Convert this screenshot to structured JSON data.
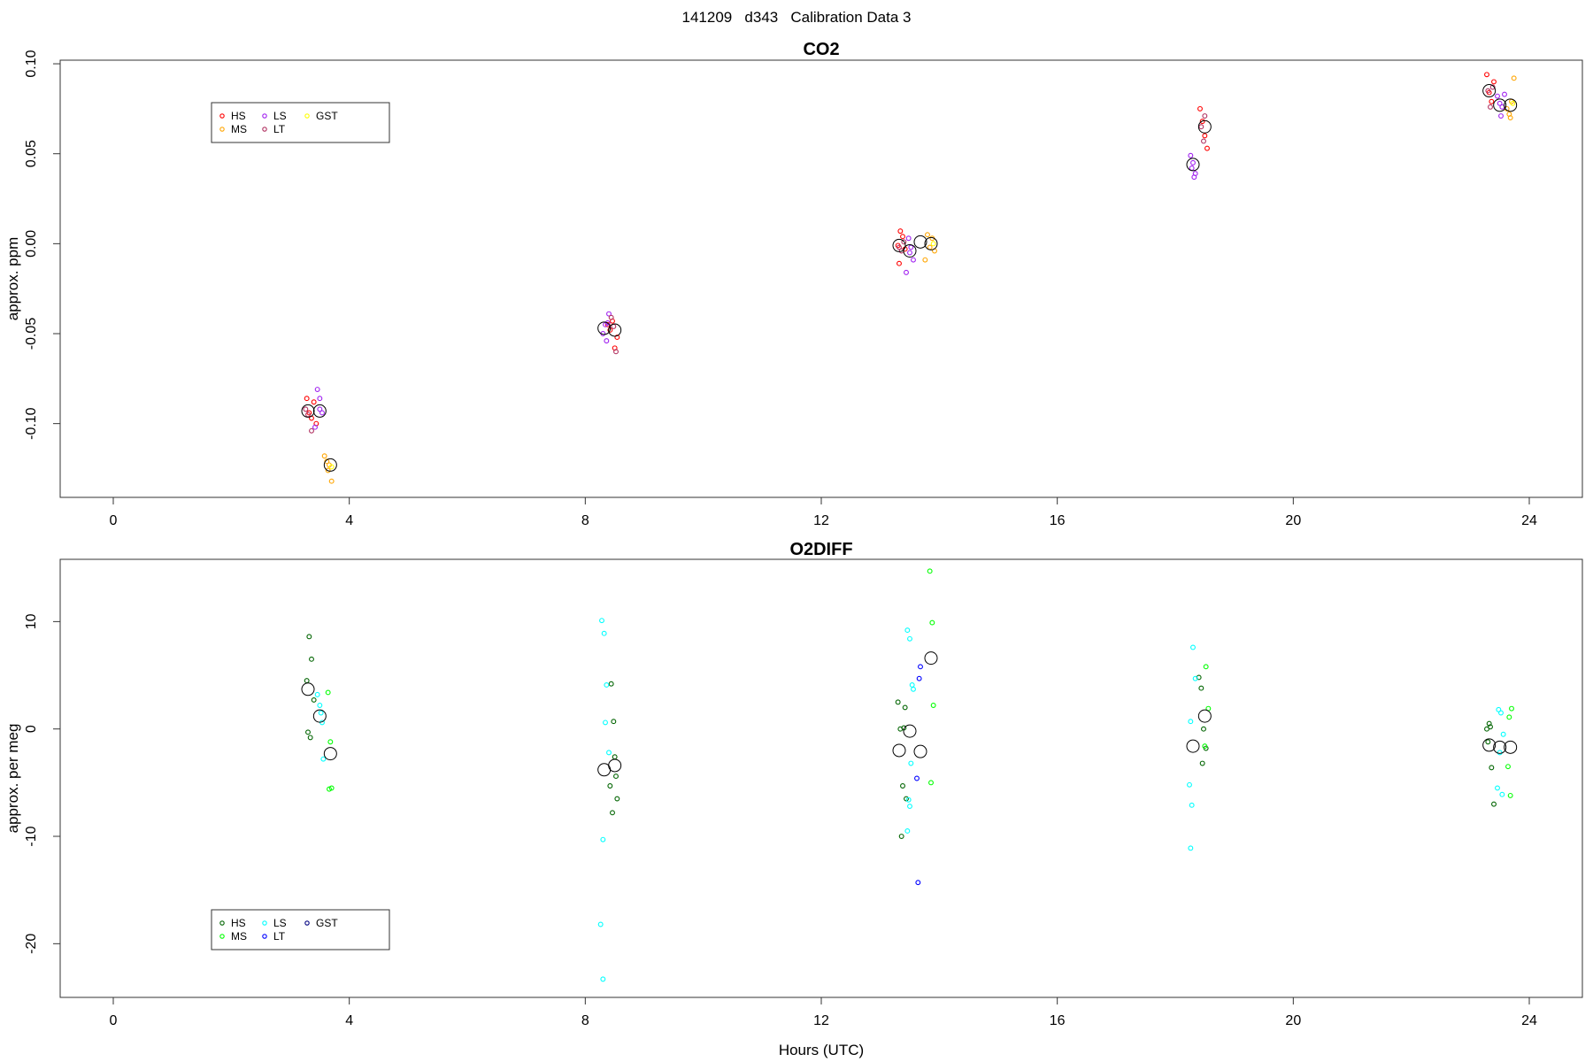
{
  "title": "141209   d343   Calibration Data 3",
  "chart_data": [
    {
      "type": "scatter",
      "title": "CO2",
      "xlabel": "",
      "ylabel": "approx. ppm",
      "xlim": [
        -0.9,
        24.9
      ],
      "ylim": [
        -0.141,
        0.102
      ],
      "xticks": [
        0,
        4,
        8,
        12,
        16,
        20,
        24
      ],
      "yticks": [
        -0.1,
        -0.05,
        0.0,
        0.05,
        0.1
      ],
      "ytick_labels": [
        "-0.10",
        "-0.05",
        "0.00",
        "0.05",
        "0.10"
      ],
      "legend": {
        "position": "top-left",
        "entries": [
          {
            "label": "HS",
            "color": "#ff0000"
          },
          {
            "label": "MS",
            "color": "#ffa500"
          },
          {
            "label": "LS",
            "color": "#a020f0"
          },
          {
            "label": "LT",
            "color": "#b03060"
          },
          {
            "label": "GST",
            "color": "#ffff00"
          }
        ]
      },
      "series": [
        {
          "color": "#ff0000",
          "points": [
            [
              3.28,
              -0.086
            ],
            [
              3.32,
              -0.094
            ],
            [
              3.36,
              -0.097
            ],
            [
              3.4,
              -0.088
            ],
            [
              3.44,
              -0.1
            ],
            [
              8.38,
              -0.045
            ],
            [
              8.42,
              -0.048
            ],
            [
              8.46,
              -0.043
            ],
            [
              8.5,
              -0.058
            ],
            [
              8.54,
              -0.052
            ],
            [
              13.3,
              -0.001
            ],
            [
              13.34,
              0.007
            ],
            [
              13.38,
              0.004
            ],
            [
              13.42,
              -0.003
            ],
            [
              13.32,
              -0.011
            ],
            [
              18.42,
              0.075
            ],
            [
              18.46,
              0.068
            ],
            [
              18.5,
              0.06
            ],
            [
              18.54,
              0.053
            ],
            [
              23.28,
              0.094
            ],
            [
              23.32,
              0.084
            ],
            [
              23.36,
              0.079
            ],
            [
              23.4,
              0.09
            ]
          ]
        },
        {
          "color": "#ffa500",
          "points": [
            [
              3.58,
              -0.118
            ],
            [
              3.62,
              -0.121
            ],
            [
              3.66,
              -0.123
            ],
            [
              3.7,
              -0.132
            ],
            [
              3.64,
              -0.126
            ],
            [
              13.8,
              0.005
            ],
            [
              13.84,
              -0.002
            ],
            [
              13.88,
              0.003
            ],
            [
              13.92,
              -0.004
            ],
            [
              13.76,
              -0.009
            ],
            [
              23.62,
              0.075
            ],
            [
              23.66,
              0.072
            ],
            [
              23.7,
              0.079
            ],
            [
              23.74,
              0.092
            ],
            [
              23.68,
              0.07
            ]
          ]
        },
        {
          "color": "#a020f0",
          "points": [
            [
              3.46,
              -0.081
            ],
            [
              3.5,
              -0.086
            ],
            [
              3.54,
              -0.094
            ],
            [
              3.42,
              -0.102
            ],
            [
              3.5,
              -0.092
            ],
            [
              8.3,
              -0.05
            ],
            [
              8.34,
              -0.045
            ],
            [
              8.38,
              -0.044
            ],
            [
              8.4,
              -0.039
            ],
            [
              8.36,
              -0.054
            ],
            [
              13.48,
              0.003
            ],
            [
              13.52,
              -0.002
            ],
            [
              13.56,
              -0.009
            ],
            [
              13.44,
              -0.016
            ],
            [
              13.5,
              -0.005
            ],
            [
              18.26,
              0.049
            ],
            [
              18.3,
              0.045
            ],
            [
              18.34,
              0.039
            ],
            [
              18.28,
              0.042
            ],
            [
              18.32,
              0.037
            ],
            [
              23.46,
              0.082
            ],
            [
              23.5,
              0.078
            ],
            [
              23.54,
              0.076
            ],
            [
              23.58,
              0.083
            ],
            [
              23.52,
              0.071
            ]
          ]
        },
        {
          "color": "#b03060",
          "points": [
            [
              3.26,
              -0.092
            ],
            [
              3.3,
              -0.095
            ],
            [
              3.36,
              -0.104
            ],
            [
              8.48,
              -0.046
            ],
            [
              8.52,
              -0.06
            ],
            [
              8.44,
              -0.041
            ],
            [
              13.36,
              -0.004
            ],
            [
              13.4,
              0.001
            ],
            [
              13.32,
              -0.002
            ],
            [
              18.44,
              0.065
            ],
            [
              18.48,
              0.057
            ],
            [
              18.5,
              0.071
            ],
            [
              23.3,
              0.085
            ],
            [
              23.34,
              0.076
            ],
            [
              23.38,
              0.087
            ]
          ]
        },
        {
          "color": "#ffff00",
          "points": [
            [
              3.7,
              -0.124
            ],
            [
              13.9,
              0.0
            ],
            [
              23.72,
              0.078
            ]
          ]
        },
        {
          "color": "#000000",
          "marker": "mean",
          "points": [
            [
              3.3,
              -0.093
            ],
            [
              3.5,
              -0.093
            ],
            [
              3.68,
              -0.123
            ],
            [
              8.32,
              -0.047
            ],
            [
              8.5,
              -0.048
            ],
            [
              13.32,
              -0.001
            ],
            [
              13.5,
              -0.004
            ],
            [
              13.68,
              0.001
            ],
            [
              13.86,
              0.0
            ],
            [
              18.3,
              0.044
            ],
            [
              18.5,
              0.065
            ],
            [
              23.32,
              0.085
            ],
            [
              23.5,
              0.077
            ],
            [
              23.68,
              0.077
            ]
          ]
        }
      ]
    },
    {
      "type": "scatter",
      "title": "O2DIFF",
      "xlabel": "Hours (UTC)",
      "ylabel": "approx. per meg",
      "xlim": [
        -0.9,
        24.9
      ],
      "ylim": [
        -25.0,
        15.8
      ],
      "xticks": [
        0,
        4,
        8,
        12,
        16,
        20,
        24
      ],
      "yticks": [
        -20,
        -10,
        0,
        10
      ],
      "ytick_labels": [
        "-20",
        "-10",
        "0",
        "10"
      ],
      "legend": {
        "position": "bottom-left",
        "entries": [
          {
            "label": "HS",
            "color": "#006400"
          },
          {
            "label": "MS",
            "color": "#00ff00"
          },
          {
            "label": "LS",
            "color": "#00ffff"
          },
          {
            "label": "LT",
            "color": "#0000ff"
          },
          {
            "label": "GST",
            "color": "#000080"
          }
        ]
      },
      "series": [
        {
          "color": "#006400",
          "points": [
            [
              3.28,
              4.5
            ],
            [
              3.32,
              8.6
            ],
            [
              3.36,
              6.5
            ],
            [
              3.3,
              -0.3
            ],
            [
              3.34,
              -0.8
            ],
            [
              3.4,
              2.7
            ],
            [
              8.44,
              4.2
            ],
            [
              8.48,
              0.7
            ],
            [
              8.5,
              -2.6
            ],
            [
              8.52,
              -4.4
            ],
            [
              8.46,
              -7.8
            ],
            [
              8.54,
              -6.5
            ],
            [
              8.42,
              -5.3
            ],
            [
              13.3,
              2.5
            ],
            [
              13.34,
              0.0
            ],
            [
              13.38,
              -5.3
            ],
            [
              13.42,
              2.0
            ],
            [
              13.36,
              -10.0
            ],
            [
              13.4,
              0.1
            ],
            [
              13.44,
              -6.5
            ],
            [
              18.4,
              4.8
            ],
            [
              18.44,
              3.8
            ],
            [
              18.48,
              0.0
            ],
            [
              18.52,
              -1.8
            ],
            [
              18.46,
              -3.2
            ],
            [
              23.28,
              0.0
            ],
            [
              23.32,
              0.5
            ],
            [
              23.36,
              -3.6
            ],
            [
              23.4,
              -7.0
            ],
            [
              23.3,
              -1.2
            ],
            [
              23.34,
              0.2
            ]
          ]
        },
        {
          "color": "#00ff00",
          "points": [
            [
              3.64,
              3.4
            ],
            [
              3.66,
              -5.6
            ],
            [
              3.68,
              -1.2
            ],
            [
              3.7,
              -5.5
            ],
            [
              13.84,
              14.7
            ],
            [
              13.88,
              9.9
            ],
            [
              13.86,
              -5.0
            ],
            [
              13.9,
              2.2
            ],
            [
              18.52,
              5.8
            ],
            [
              18.56,
              1.9
            ],
            [
              18.5,
              -1.6
            ],
            [
              23.66,
              1.1
            ],
            [
              23.7,
              1.9
            ],
            [
              23.68,
              -6.2
            ],
            [
              23.64,
              -3.5
            ]
          ]
        },
        {
          "color": "#00ffff",
          "points": [
            [
              3.46,
              3.2
            ],
            [
              3.5,
              2.2
            ],
            [
              3.54,
              0.6
            ],
            [
              3.56,
              -2.8
            ],
            [
              3.52,
              1.5
            ],
            [
              8.28,
              10.1
            ],
            [
              8.32,
              8.9
            ],
            [
              8.36,
              4.1
            ],
            [
              8.34,
              0.6
            ],
            [
              8.4,
              -2.2
            ],
            [
              8.3,
              -10.3
            ],
            [
              8.26,
              -18.2
            ],
            [
              8.3,
              -23.3
            ],
            [
              13.46,
              9.2
            ],
            [
              13.5,
              8.4
            ],
            [
              13.54,
              4.1
            ],
            [
              13.56,
              3.7
            ],
            [
              13.52,
              -3.2
            ],
            [
              13.48,
              -6.6
            ],
            [
              13.5,
              -7.2
            ],
            [
              13.46,
              -9.5
            ],
            [
              18.3,
              7.6
            ],
            [
              18.34,
              4.7
            ],
            [
              18.26,
              0.7
            ],
            [
              18.24,
              -5.2
            ],
            [
              18.28,
              -7.1
            ],
            [
              18.26,
              -11.1
            ],
            [
              23.48,
              1.8
            ],
            [
              23.52,
              1.5
            ],
            [
              23.56,
              -0.5
            ],
            [
              23.5,
              -2.2
            ],
            [
              23.46,
              -5.5
            ],
            [
              23.54,
              -6.1
            ]
          ]
        },
        {
          "color": "#0000ff",
          "points": [
            [
              13.68,
              5.8
            ],
            [
              13.66,
              4.7
            ],
            [
              13.62,
              -4.6
            ],
            [
              13.64,
              -14.3
            ]
          ]
        },
        {
          "color": "#000000",
          "marker": "mean",
          "points": [
            [
              3.3,
              3.7
            ],
            [
              3.5,
              1.2
            ],
            [
              3.68,
              -2.3
            ],
            [
              8.32,
              -3.8
            ],
            [
              8.5,
              -3.4
            ],
            [
              13.32,
              -2.0
            ],
            [
              13.5,
              -0.2
            ],
            [
              13.68,
              -2.1
            ],
            [
              13.86,
              6.6
            ],
            [
              18.3,
              -1.6
            ],
            [
              18.5,
              1.2
            ],
            [
              23.32,
              -1.5
            ],
            [
              23.5,
              -1.7
            ],
            [
              23.68,
              -1.7
            ]
          ]
        }
      ]
    }
  ]
}
